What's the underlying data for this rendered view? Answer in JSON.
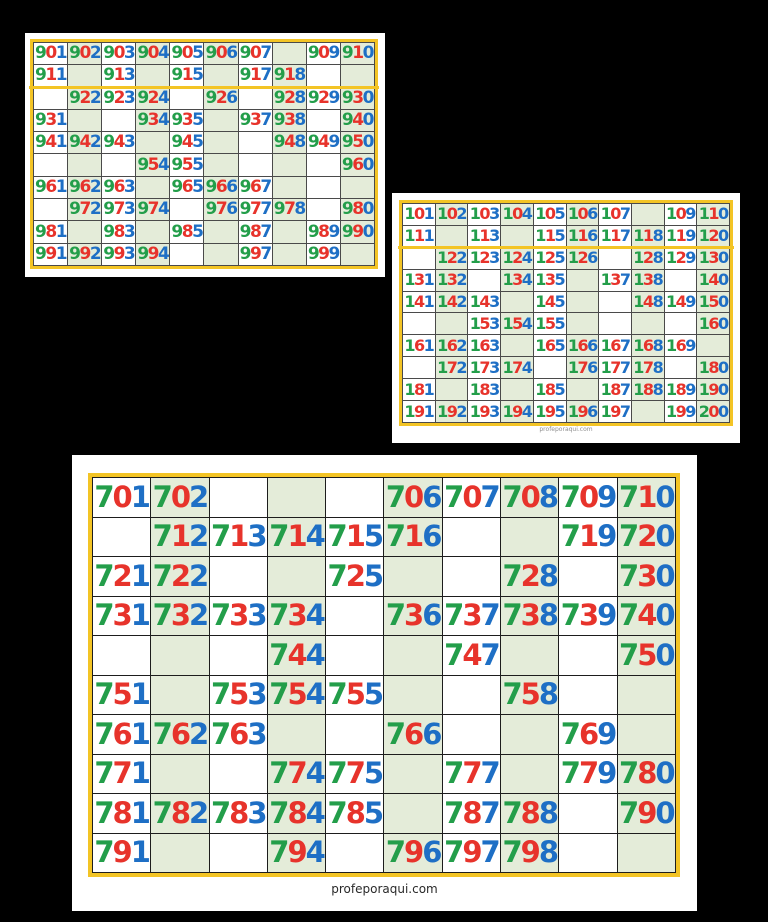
{
  "colors": {
    "digit_first": "#239e4a",
    "digit_second": "#e7332b",
    "digit_third": "#1e6fc5",
    "cell_shaded": "#e4ecd9",
    "cell_plain": "#ffffff",
    "frame_yellow": "#f3c425",
    "background": "#000000"
  },
  "footer": {
    "site": "profeporaqui.com"
  },
  "charts": [
    {
      "id": "900s",
      "rows": [
        [
          "901",
          "902",
          "903",
          "904",
          "905",
          "906",
          "907",
          "",
          "909",
          "910"
        ],
        [
          "911",
          "",
          "913",
          "",
          "915",
          "",
          "917",
          "918",
          "",
          ""
        ],
        [
          "",
          "922",
          "923",
          "924",
          "",
          "926",
          "",
          "928",
          "929",
          "930"
        ],
        [
          "931",
          "",
          "",
          "934",
          "935",
          "",
          "937",
          "938",
          "",
          "940"
        ],
        [
          "941",
          "942",
          "943",
          "",
          "945",
          "",
          "",
          "948",
          "949",
          "950"
        ],
        [
          "",
          "",
          "",
          "954",
          "955",
          "",
          "",
          "",
          "",
          "960"
        ],
        [
          "961",
          "962",
          "963",
          "",
          "965",
          "966",
          "967",
          "",
          "",
          ""
        ],
        [
          "",
          "972",
          "973",
          "974",
          "",
          "976",
          "977",
          "978",
          "",
          "980"
        ],
        [
          "981",
          "",
          "983",
          "",
          "985",
          "",
          "987",
          "",
          "989",
          "990"
        ],
        [
          "991",
          "992",
          "993",
          "994",
          "",
          "",
          "997",
          "",
          "999",
          ""
        ]
      ]
    },
    {
      "id": "100s",
      "rows": [
        [
          "101",
          "102",
          "103",
          "104",
          "105",
          "106",
          "107",
          "",
          "109",
          "110"
        ],
        [
          "111",
          "",
          "113",
          "",
          "115",
          "116",
          "117",
          "118",
          "119",
          "120"
        ],
        [
          "",
          "122",
          "123",
          "124",
          "125",
          "126",
          "",
          "128",
          "129",
          "130"
        ],
        [
          "131",
          "132",
          "",
          "134",
          "135",
          "",
          "137",
          "138",
          "",
          "140"
        ],
        [
          "141",
          "142",
          "143",
          "",
          "145",
          "",
          "",
          "148",
          "149",
          "150"
        ],
        [
          "",
          "",
          "153",
          "154",
          "155",
          "",
          "",
          "",
          "",
          "160"
        ],
        [
          "161",
          "162",
          "163",
          "",
          "165",
          "166",
          "167",
          "168",
          "169",
          ""
        ],
        [
          "",
          "172",
          "173",
          "174",
          "",
          "176",
          "177",
          "178",
          "",
          "180"
        ],
        [
          "181",
          "",
          "183",
          "",
          "185",
          "",
          "187",
          "188",
          "189",
          "190"
        ],
        [
          "191",
          "192",
          "193",
          "194",
          "195",
          "196",
          "197",
          "",
          "199",
          "200"
        ]
      ]
    },
    {
      "id": "700s",
      "rows": [
        [
          "701",
          "702",
          "",
          "",
          "",
          "706",
          "707",
          "708",
          "709",
          "710"
        ],
        [
          "",
          "712",
          "713",
          "714",
          "715",
          "716",
          "",
          "",
          "719",
          "720"
        ],
        [
          "721",
          "722",
          "",
          "",
          "725",
          "",
          "",
          "728",
          "",
          "730"
        ],
        [
          "731",
          "732",
          "733",
          "734",
          "",
          "736",
          "737",
          "738",
          "739",
          "740"
        ],
        [
          "",
          "",
          "",
          "744",
          "",
          "",
          "747",
          "",
          "",
          "750"
        ],
        [
          "751",
          "",
          "753",
          "754",
          "755",
          "",
          "",
          "758",
          "",
          ""
        ],
        [
          "761",
          "762",
          "763",
          "",
          "",
          "766",
          "",
          "",
          "769",
          ""
        ],
        [
          "771",
          "",
          "",
          "774",
          "775",
          "",
          "777",
          "",
          "779",
          "780"
        ],
        [
          "781",
          "782",
          "783",
          "784",
          "785",
          "",
          "787",
          "788",
          "",
          "790"
        ],
        [
          "791",
          "",
          "",
          "794",
          "",
          "796",
          "797",
          "798",
          "",
          ""
        ]
      ]
    }
  ]
}
